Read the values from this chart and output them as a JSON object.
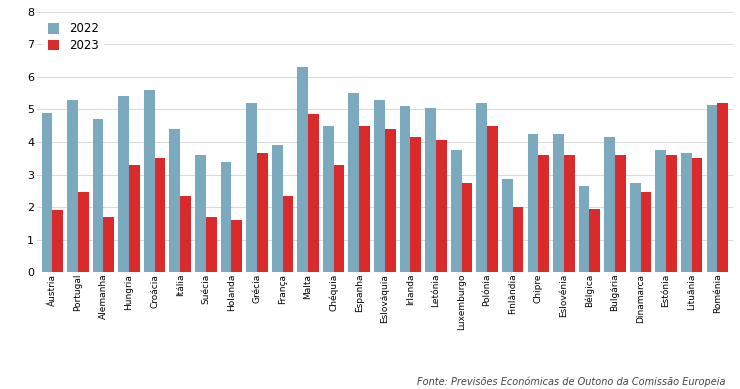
{
  "categories": [
    "Áustria",
    "Portugal",
    "Alemanha",
    "Hungria",
    "Croácia",
    "Itália",
    "Suécia",
    "Holanda",
    "Grécia",
    "França",
    "Malta",
    "Chéquia",
    "Espanha",
    "Eslováquia",
    "Irlanda",
    "Letónia",
    "Luxemburgo",
    "Polónia",
    "Finlândia",
    "Chipre",
    "Eslovénia",
    "Bélgica",
    "Bulgária",
    "Dinamarca",
    "Estónia",
    "Lituânia",
    "Roménia"
  ],
  "values_2022": [
    4.9,
    5.3,
    4.7,
    5.4,
    5.6,
    4.4,
    3.6,
    3.4,
    5.2,
    3.9,
    6.3,
    4.5,
    5.5,
    5.3,
    5.1,
    5.05,
    3.75,
    5.2,
    2.85,
    4.25,
    4.25,
    2.65,
    4.15,
    2.75,
    3.75,
    3.65,
    5.15
  ],
  "values_2023": [
    1.9,
    2.45,
    1.7,
    3.3,
    3.5,
    2.35,
    1.7,
    1.6,
    3.65,
    2.35,
    4.85,
    3.3,
    4.5,
    4.4,
    4.15,
    4.05,
    2.75,
    4.5,
    2.0,
    3.6,
    3.6,
    1.95,
    3.6,
    2.45,
    3.6,
    3.5,
    5.2
  ],
  "color_2022": "#7baabe",
  "color_2023": "#d92b2b",
  "legend_2022": "2022",
  "legend_2023": "2023",
  "ylim": [
    0,
    8
  ],
  "yticks": [
    0,
    1,
    2,
    3,
    4,
    5,
    6,
    7,
    8
  ],
  "source_text": "Fonte: Previsões Económicas de Outono da Comissão Europeia",
  "bar_width": 0.42,
  "background_color": "#ffffff",
  "grid_color": "#d8d8d8",
  "tick_label_fontsize": 6.5,
  "ytick_fontsize": 8.0,
  "legend_fontsize": 8.5,
  "source_fontsize": 7.0
}
